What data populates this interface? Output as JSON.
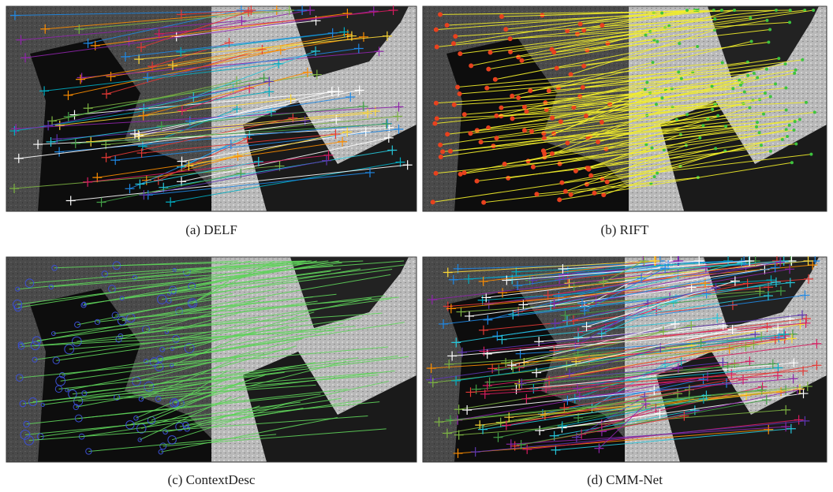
{
  "figure": {
    "panels": [
      {
        "caption": "(a) DELF"
      },
      {
        "caption": "(b) RIFT"
      },
      {
        "caption": "(c) ContextDesc"
      },
      {
        "caption": "(d) CMM-Net"
      }
    ]
  }
}
